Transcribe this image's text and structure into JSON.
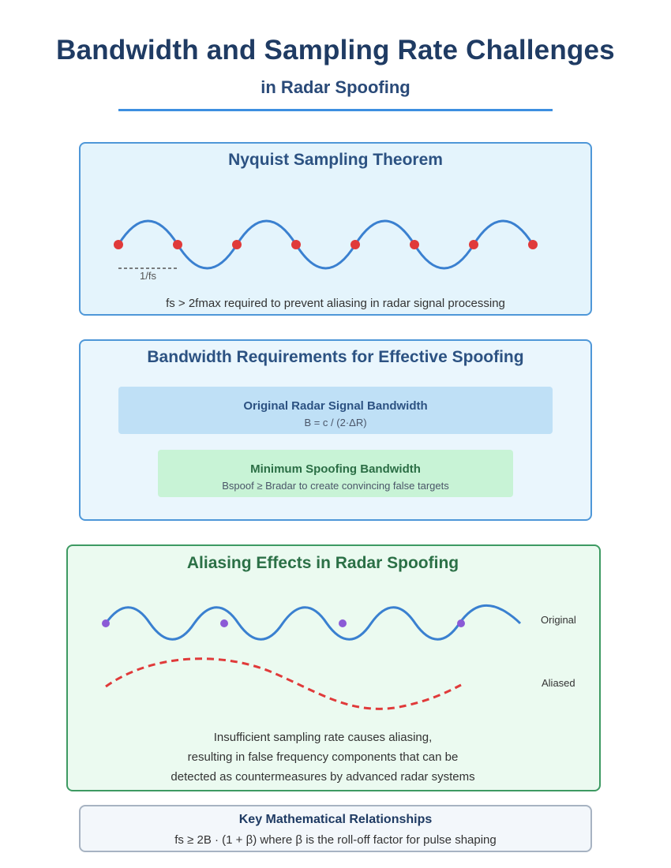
{
  "header": {
    "title": "Bandwidth and Sampling Rate Challenges",
    "subtitle": "in Radar Spoofing"
  },
  "nyquist": {
    "heading": "Nyquist Sampling Theorem",
    "period_label": "1/fs",
    "caption": "fs > 2fmax required to prevent aliasing in radar signal processing",
    "colors": {
      "wave": "#3a80d0",
      "sample_point": "#e03a3a"
    }
  },
  "bandwidth": {
    "heading": "Bandwidth Requirements for Effective Spoofing",
    "radar_box": {
      "title": "Original Radar Signal Bandwidth",
      "formula": "B = c / (2·ΔR)"
    },
    "spoof_box": {
      "title": "Minimum Spoofing Bandwidth",
      "formula": "Bspoof ≥ Bradar to create convincing false targets"
    }
  },
  "aliasing": {
    "heading": "Aliasing Effects in Radar Spoofing",
    "original_label": "Original",
    "aliased_label": "Aliased",
    "explanation": [
      "Insufficient sampling rate causes aliasing,",
      "resulting in false frequency components that can be",
      "detected as countermeasures by advanced radar systems"
    ],
    "colors": {
      "original_wave": "#3a80d0",
      "aliased_wave": "#e03a3a",
      "sample_point": "#8b5ad6"
    }
  },
  "key_relationships": {
    "heading": "Key Mathematical Relationships",
    "formula": "fs ≥ 2B · (1 + β) where β is the roll-off factor for pulse shaping"
  }
}
